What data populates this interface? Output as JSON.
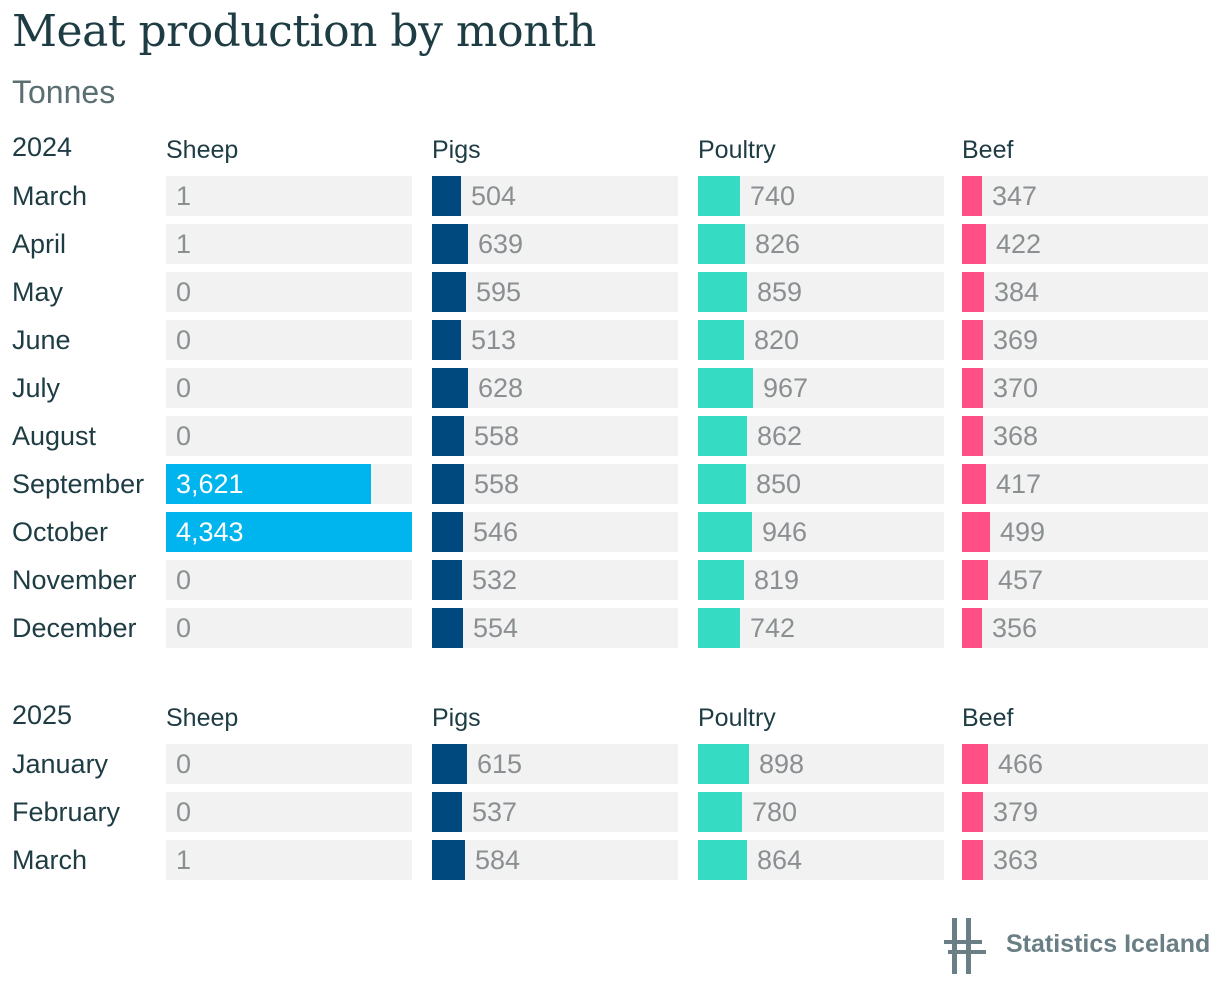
{
  "title": "Meat production by month",
  "subtitle": "Tonnes",
  "colors": {
    "Sheep": "#00b4ee",
    "Pigs": "#00497f",
    "Poultry": "#35dcc3",
    "Beef": "#ff4f87",
    "cell_bg": "#f2f2f2"
  },
  "footer": {
    "brand": "Statistics Iceland",
    "logo_icon": "statistics-iceland-logo-icon"
  },
  "chart_data": {
    "type": "bar",
    "title": "Meat production by month",
    "subtitle": "Tonnes",
    "series_names": [
      "Sheep",
      "Pigs",
      "Poultry",
      "Beef"
    ],
    "xlim": [
      0,
      4343
    ],
    "groups": [
      {
        "year": "2024",
        "categories": [
          "March",
          "April",
          "May",
          "June",
          "July",
          "August",
          "September",
          "October",
          "November",
          "December"
        ],
        "series": [
          {
            "name": "Sheep",
            "values": [
              1,
              1,
              0,
              0,
              0,
              0,
              3621,
              4343,
              0,
              0
            ],
            "labels": [
              "1",
              "1",
              "0",
              "0",
              "0",
              "0",
              "3,621",
              "4,343",
              "0",
              "0"
            ]
          },
          {
            "name": "Pigs",
            "values": [
              504,
              639,
              595,
              513,
              628,
              558,
              558,
              546,
              532,
              554
            ],
            "labels": [
              "504",
              "639",
              "595",
              "513",
              "628",
              "558",
              "558",
              "546",
              "532",
              "554"
            ]
          },
          {
            "name": "Poultry",
            "values": [
              740,
              826,
              859,
              820,
              967,
              862,
              850,
              946,
              819,
              742
            ],
            "labels": [
              "740",
              "826",
              "859",
              "820",
              "967",
              "862",
              "850",
              "946",
              "819",
              "742"
            ]
          },
          {
            "name": "Beef",
            "values": [
              347,
              422,
              384,
              369,
              370,
              368,
              417,
              499,
              457,
              356
            ],
            "labels": [
              "347",
              "422",
              "384",
              "369",
              "370",
              "368",
              "417",
              "499",
              "457",
              "356"
            ]
          }
        ]
      },
      {
        "year": "2025",
        "categories": [
          "January",
          "February",
          "March"
        ],
        "series": [
          {
            "name": "Sheep",
            "values": [
              0,
              0,
              1
            ],
            "labels": [
              "0",
              "0",
              "1"
            ]
          },
          {
            "name": "Pigs",
            "values": [
              615,
              537,
              584
            ],
            "labels": [
              "615",
              "537",
              "584"
            ]
          },
          {
            "name": "Poultry",
            "values": [
              898,
              780,
              864
            ],
            "labels": [
              "898",
              "780",
              "864"
            ]
          },
          {
            "name": "Beef",
            "values": [
              466,
              379,
              363
            ],
            "labels": [
              "466",
              "379",
              "363"
            ]
          }
        ]
      }
    ]
  }
}
